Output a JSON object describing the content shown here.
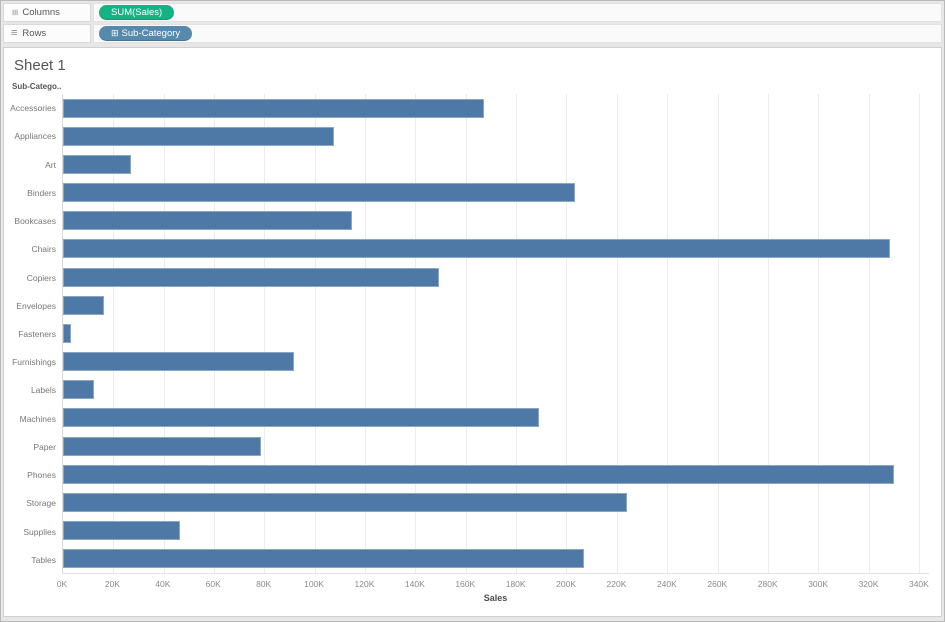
{
  "shelves": {
    "columns": {
      "label": "Columns",
      "icon_glyph": "≡",
      "pill": "SUM(Sales)"
    },
    "rows": {
      "label": "Rows",
      "icon_glyph": "≡",
      "pill": "Sub-Category",
      "pill_icon": "⊞"
    }
  },
  "sheet": {
    "title": "Sheet 1",
    "row_field_header": "Sub-Catego.."
  },
  "chart_data": {
    "type": "bar",
    "orientation": "horizontal",
    "title": "Sheet 1",
    "categories": [
      "Accessories",
      "Appliances",
      "Art",
      "Binders",
      "Bookcases",
      "Chairs",
      "Copiers",
      "Envelopes",
      "Fasteners",
      "Furnishings",
      "Labels",
      "Machines",
      "Paper",
      "Phones",
      "Storage",
      "Supplies",
      "Tables"
    ],
    "values": [
      167380,
      107532,
      27119,
      203413,
      114880,
      328449,
      149528,
      16476,
      3024,
      91705,
      12486,
      189239,
      78479,
      330007,
      223844,
      46674,
      206966
    ],
    "xlabel": "Sales",
    "ylabel": "Sub-Category",
    "x_ticks": [
      "0K",
      "20K",
      "40K",
      "60K",
      "80K",
      "100K",
      "120K",
      "140K",
      "160K",
      "180K",
      "200K",
      "220K",
      "240K",
      "260K",
      "280K",
      "300K",
      "320K",
      "340K"
    ],
    "x_tick_values": [
      0,
      20000,
      40000,
      60000,
      80000,
      100000,
      120000,
      140000,
      160000,
      180000,
      200000,
      220000,
      240000,
      260000,
      280000,
      300000,
      320000,
      340000
    ],
    "xlim": [
      0,
      344000
    ],
    "grid": "vertical",
    "bar_color": "#4e79a7"
  },
  "colors": {
    "bar": "#4e79a7",
    "bar_border": "#8ba7c2",
    "pill_green": "#16b283",
    "pill_blue": "#5589ae",
    "gridline": "#ececec"
  }
}
